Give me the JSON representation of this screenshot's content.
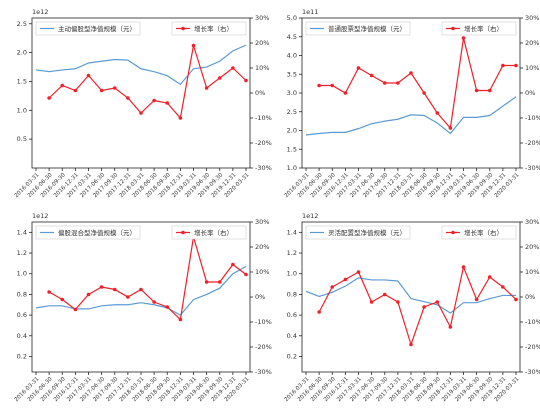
{
  "chart_data": [
    {
      "type": "line",
      "y_offset_label": "1e12",
      "categories": [
        "2016-03-31",
        "2016-06-30",
        "2016-09-30",
        "2016-12-31",
        "2017-03-31",
        "2017-06-30",
        "2017-09-30",
        "2017-12-31",
        "2018-03-31",
        "2018-06-30",
        "2018-09-30",
        "2018-12-31",
        "2019-03-31",
        "2019-06-30",
        "2019-09-30",
        "2019-12-31",
        "2020-03-31"
      ],
      "series": [
        {
          "name": "主动偏股型净值规模（元）",
          "color": "#5b9bd5",
          "axis": "y",
          "values": [
            1.7,
            1.67,
            1.7,
            1.72,
            1.82,
            1.85,
            1.88,
            1.87,
            1.72,
            1.67,
            1.6,
            1.45,
            1.72,
            1.75,
            1.85,
            2.03,
            2.13
          ]
        },
        {
          "name": "增长率（右）",
          "color": "#f0202a",
          "axis": "y2",
          "values": [
            null,
            -2,
            3,
            1,
            7,
            1,
            2,
            -2,
            -8,
            -3,
            -4,
            -10,
            19,
            2,
            6,
            10,
            5
          ]
        }
      ],
      "ylim": [
        0,
        2.6
      ],
      "yticks": [
        {
          "value": 0.5,
          "label": "0.5"
        },
        {
          "value": 1,
          "label": "1.0"
        },
        {
          "value": 1.5,
          "label": "1.5"
        },
        {
          "value": 2,
          "label": "2.0"
        },
        {
          "value": 2.5,
          "label": "2.5"
        }
      ],
      "y2lim": [
        -30,
        30
      ],
      "y2ticks": [
        {
          "value": -30,
          "label": "-30%"
        },
        {
          "value": -20,
          "label": "-20%"
        },
        {
          "value": -10,
          "label": "-10%"
        },
        {
          "value": 0,
          "label": "0%"
        },
        {
          "value": 10,
          "label": "10%"
        },
        {
          "value": 20,
          "label": "20%"
        },
        {
          "value": 30,
          "label": "30%"
        }
      ]
    },
    {
      "type": "line",
      "y_offset_label": "1e11",
      "categories": [
        "2016-03-31",
        "2016-06-30",
        "2016-09-30",
        "2016-12-31",
        "2017-03-31",
        "2017-06-30",
        "2017-09-30",
        "2017-12-31",
        "2018-03-31",
        "2018-06-30",
        "2018-09-30",
        "2018-12-31",
        "2019-03-31",
        "2019-06-30",
        "2019-09-30",
        "2019-12-31",
        "2020-03-31"
      ],
      "series": [
        {
          "name": "普通股票型净值规模（元）",
          "color": "#5b9bd5",
          "axis": "y",
          "values": [
            1.88,
            1.92,
            1.95,
            1.95,
            2.05,
            2.18,
            2.25,
            2.3,
            2.42,
            2.4,
            2.2,
            1.92,
            2.35,
            2.35,
            2.4,
            2.65,
            2.9
          ]
        },
        {
          "name": "增长率（右）",
          "color": "#f0202a",
          "axis": "y2",
          "values": [
            null,
            3,
            3,
            0,
            10,
            7,
            4,
            4,
            8,
            0,
            -8,
            -14,
            22,
            1,
            1,
            11,
            11
          ]
        }
      ],
      "ylim": [
        1.0,
        5.0
      ],
      "yticks": [
        {
          "value": 1,
          "label": "1.0"
        },
        {
          "value": 1.5,
          "label": "1.5"
        },
        {
          "value": 2,
          "label": "2.0"
        },
        {
          "value": 2.5,
          "label": "2.5"
        },
        {
          "value": 3,
          "label": "3.0"
        },
        {
          "value": 3.5,
          "label": "3.5"
        },
        {
          "value": 4,
          "label": "4.0"
        },
        {
          "value": 4.5,
          "label": "4.5"
        },
        {
          "value": 5,
          "label": "5.0"
        }
      ],
      "y2lim": [
        -30,
        30
      ],
      "y2ticks": [
        {
          "value": -30,
          "label": "-30%"
        },
        {
          "value": -20,
          "label": "-20%"
        },
        {
          "value": -10,
          "label": "-10%"
        },
        {
          "value": 0,
          "label": "0%"
        },
        {
          "value": 10,
          "label": "10%"
        },
        {
          "value": 20,
          "label": "20%"
        },
        {
          "value": 30,
          "label": "30%"
        }
      ]
    },
    {
      "type": "line",
      "y_offset_label": "1e12",
      "categories": [
        "2016-03-31",
        "2016-06-30",
        "2016-09-30",
        "2016-12-31",
        "2017-03-31",
        "2017-06-30",
        "2017-09-30",
        "2017-12-31",
        "2018-03-31",
        "2018-06-30",
        "2018-09-30",
        "2018-12-31",
        "2019-03-31",
        "2019-06-30",
        "2019-09-30",
        "2019-12-31",
        "2020-03-31"
      ],
      "series": [
        {
          "name": "偏股混合型净值规模（元）",
          "color": "#5b9bd5",
          "axis": "y",
          "values": [
            0.67,
            0.69,
            0.69,
            0.66,
            0.66,
            0.69,
            0.7,
            0.7,
            0.72,
            0.7,
            0.67,
            0.6,
            0.75,
            0.8,
            0.86,
            1.0,
            1.07
          ]
        },
        {
          "name": "增长率（右）",
          "color": "#f0202a",
          "axis": "y2",
          "values": [
            null,
            2,
            -1,
            -5,
            1,
            4,
            3,
            0,
            3,
            -2,
            -4,
            -9,
            24,
            6,
            6,
            13,
            9
          ]
        }
      ],
      "ylim": [
        0.05,
        1.5
      ],
      "yticks": [
        0.2,
        0.4,
        0.6,
        0.8,
        {
          "value": 1,
          "label": "1.0"
        },
        1.2,
        1.4
      ],
      "y2lim": [
        -30,
        30
      ],
      "y2ticks": [
        {
          "value": -30,
          "label": "-30%"
        },
        {
          "value": -20,
          "label": "-20%"
        },
        {
          "value": -10,
          "label": "-10%"
        },
        {
          "value": 0,
          "label": "0%"
        },
        {
          "value": 10,
          "label": "10%"
        },
        {
          "value": 20,
          "label": "20%"
        },
        {
          "value": 30,
          "label": "30%"
        }
      ]
    },
    {
      "type": "line",
      "y_offset_label": "1e12",
      "categories": [
        "2016-03-31",
        "2016-06-30",
        "2016-09-30",
        "2016-12-31",
        "2017-03-31",
        "2017-06-30",
        "2017-09-30",
        "2017-12-31",
        "2018-03-31",
        "2018-06-30",
        "2018-09-30",
        "2018-12-31",
        "2019-03-31",
        "2019-06-30",
        "2019-09-30",
        "2019-12-31",
        "2020-03-31"
      ],
      "series": [
        {
          "name": "灵活配置型净值规模（元）",
          "color": "#5b9bd5",
          "axis": "y",
          "values": [
            0.83,
            0.78,
            0.82,
            0.88,
            0.96,
            0.94,
            0.94,
            0.93,
            0.76,
            0.73,
            0.7,
            0.62,
            0.72,
            0.72,
            0.76,
            0.79,
            0.79
          ]
        },
        {
          "name": "增长率（右）",
          "color": "#f0202a",
          "axis": "y2",
          "values": [
            null,
            -6,
            4,
            7,
            10,
            -2,
            1,
            -2,
            -19,
            -4,
            -2,
            -12,
            12,
            -1,
            8,
            4,
            -1
          ]
        }
      ],
      "ylim": [
        0.05,
        1.5
      ],
      "yticks": [
        0.2,
        0.4,
        0.6,
        0.8,
        {
          "value": 1,
          "label": "1.0"
        },
        1.2,
        1.4
      ],
      "y2lim": [
        -30,
        30
      ],
      "y2ticks": [
        {
          "value": -30,
          "label": "-30%"
        },
        {
          "value": -20,
          "label": "-20%"
        },
        {
          "value": -10,
          "label": "-10%"
        },
        {
          "value": 0,
          "label": "0%"
        },
        {
          "value": 10,
          "label": "10%"
        },
        {
          "value": 20,
          "label": "20%"
        },
        {
          "value": 30,
          "label": "30%"
        }
      ]
    }
  ]
}
